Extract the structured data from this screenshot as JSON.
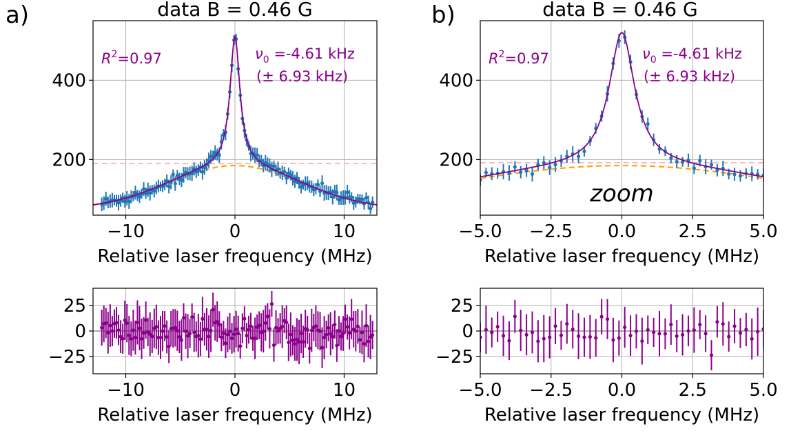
{
  "chart_data": [
    {
      "panel": "a)",
      "type": "scatter",
      "title": "data B = 0.46 G",
      "xlabel": "Relative laser frequency (MHz)",
      "ylabel": "",
      "xlim": [
        -13,
        13
      ],
      "ylim": [
        60,
        550
      ],
      "xticks": [
        -10,
        0,
        10
      ],
      "xtick_labels": [
        "−10",
        "0",
        "10"
      ],
      "yticks": [
        200,
        400
      ],
      "ytick_labels": [
        "200",
        "400"
      ],
      "grid": true,
      "annotations": {
        "r2_symbol": "R",
        "r2_exp": "2",
        "r2_value": "=0.97",
        "nu_symbol": "ν",
        "nu_sub": "0",
        "nu_value": " =-4.61 kHz",
        "nu_err": "(± 6.93 kHz)"
      },
      "model": {
        "center": 0.0,
        "peak": 510,
        "baseline": 75,
        "lorentz_amp": 325,
        "lorentz_hwhm": 0.55,
        "gauss_amp": 110,
        "gauss_sigma": 6.0,
        "ref_level": 190
      },
      "series": [
        {
          "name": "data",
          "kind": "errorbar",
          "color": "#1f77b4",
          "x_range": [
            -12.2,
            12.6
          ],
          "n": 130,
          "err": 12
        },
        {
          "name": "total fit",
          "kind": "line",
          "color": "#8b008b"
        },
        {
          "name": "broad component",
          "kind": "dashed",
          "color": "#ffa500"
        },
        {
          "name": "reference",
          "kind": "dashed",
          "color": "#ffb6c1"
        }
      ]
    },
    {
      "panel": "b)",
      "type": "scatter",
      "title": "data B = 0.46 G",
      "xlabel": "Relative laser frequency (MHz)",
      "ylabel": "",
      "xlim": [
        -5,
        5
      ],
      "ylim": [
        60,
        550
      ],
      "xticks": [
        -5,
        -2.5,
        0,
        2.5,
        5
      ],
      "xtick_labels": [
        "−5.0",
        "−2.5",
        "0.0",
        "2.5",
        "5.0"
      ],
      "yticks": [
        200,
        400
      ],
      "ytick_labels": [
        "200",
        "400"
      ],
      "grid": true,
      "annotations": {
        "r2_symbol": "R",
        "r2_exp": "2",
        "r2_value": "=0.97",
        "nu_symbol": "ν",
        "nu_sub": "0",
        "nu_value": " =-4.61 kHz",
        "nu_err": "(± 6.93 kHz)",
        "zoom": "zoom"
      },
      "model": {
        "center": 0.0,
        "peak": 520,
        "baseline": 75,
        "lorentz_amp": 335,
        "lorentz_hwhm": 0.55,
        "gauss_amp": 110,
        "gauss_sigma": 6.0,
        "ref_level": 192
      },
      "series": [
        {
          "name": "data",
          "kind": "errorbar",
          "color": "#1f77b4",
          "x_range": [
            -5,
            5
          ],
          "n": 50,
          "err": 12
        },
        {
          "name": "total fit",
          "kind": "line",
          "color": "#8b008b"
        },
        {
          "name": "broad component",
          "kind": "dashed",
          "color": "#ffa500"
        },
        {
          "name": "reference",
          "kind": "dashed",
          "color": "#ffb6c1"
        }
      ]
    },
    {
      "panel": "a) residuals",
      "type": "scatter",
      "xlabel": "Relative laser frequency (MHz)",
      "xlim": [
        -13,
        13
      ],
      "ylim": [
        -42,
        42
      ],
      "xticks": [
        -10,
        0,
        10
      ],
      "xtick_labels": [
        "−10",
        "0",
        "10"
      ],
      "yticks": [
        -25,
        0,
        25
      ],
      "ytick_labels": [
        "−25",
        "0",
        "25"
      ],
      "grid": true,
      "series": [
        {
          "name": "residuals",
          "kind": "errorbar",
          "color": "#8b008b",
          "x_range": [
            -12.2,
            12.6
          ],
          "n": 130,
          "err": 12
        }
      ]
    },
    {
      "panel": "b) residuals",
      "type": "scatter",
      "xlabel": "Relative laser frequency (MHz)",
      "xlim": [
        -5,
        5
      ],
      "ylim": [
        -42,
        42
      ],
      "xticks": [
        -5,
        -2.5,
        0,
        2.5,
        5
      ],
      "xtick_labels": [
        "−5.0",
        "−2.5",
        "0.0",
        "2.5",
        "5.0"
      ],
      "yticks": [
        -25,
        0,
        25
      ],
      "ytick_labels": [
        "−25",
        "0",
        "25"
      ],
      "grid": true,
      "series": [
        {
          "name": "residuals",
          "kind": "errorbar",
          "color": "#8b008b",
          "x_range": [
            -5,
            5
          ],
          "n": 50,
          "err": 14
        }
      ]
    }
  ]
}
